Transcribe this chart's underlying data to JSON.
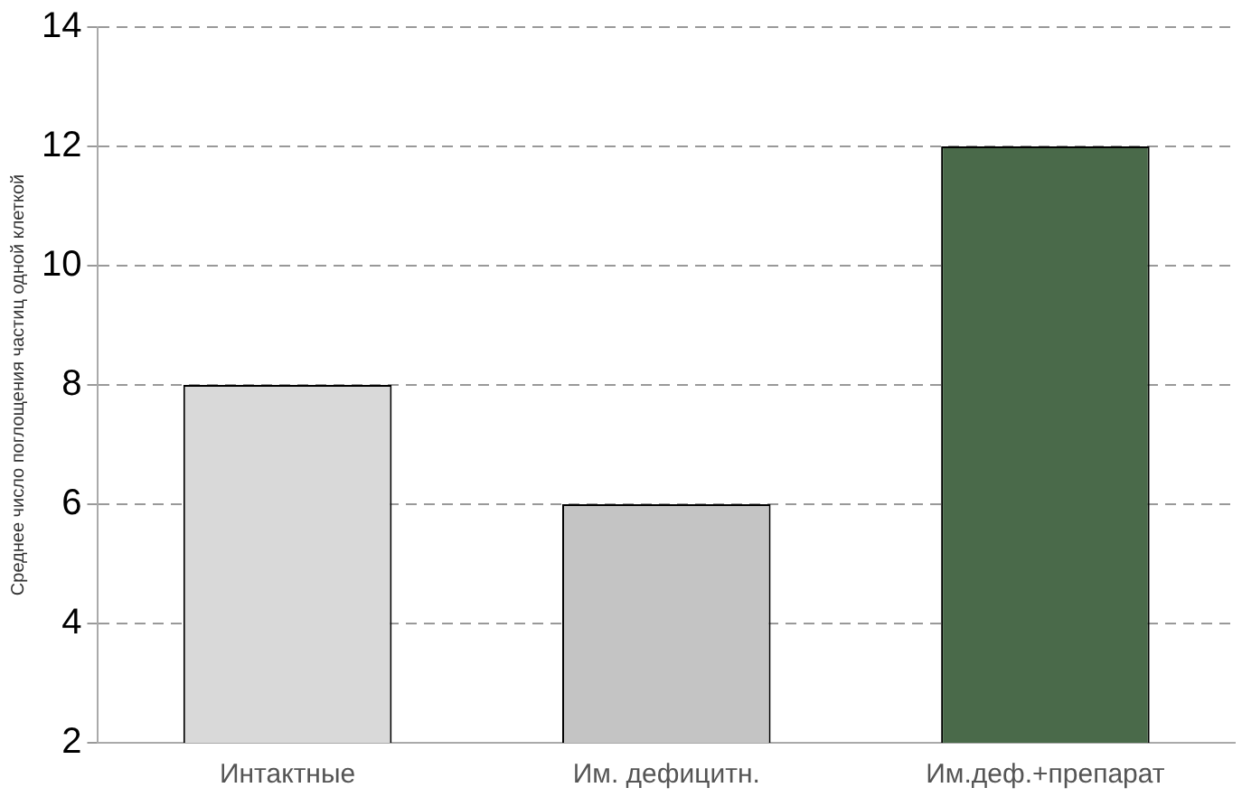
{
  "chart_data": {
    "type": "bar",
    "ylabel": "Среднее число поглощения частиц одной клеткой",
    "categories": [
      "Интактные",
      "Им. дефицитн.",
      "Им.деф.+препарат"
    ],
    "values": [
      8,
      6,
      12
    ],
    "colors": [
      "#d9d9d9",
      "#c4c4c4",
      "#4a6a4a"
    ],
    "ylim": [
      2,
      14
    ],
    "yticks": [
      2,
      4,
      6,
      8,
      10,
      12,
      14
    ],
    "grid": "y"
  }
}
